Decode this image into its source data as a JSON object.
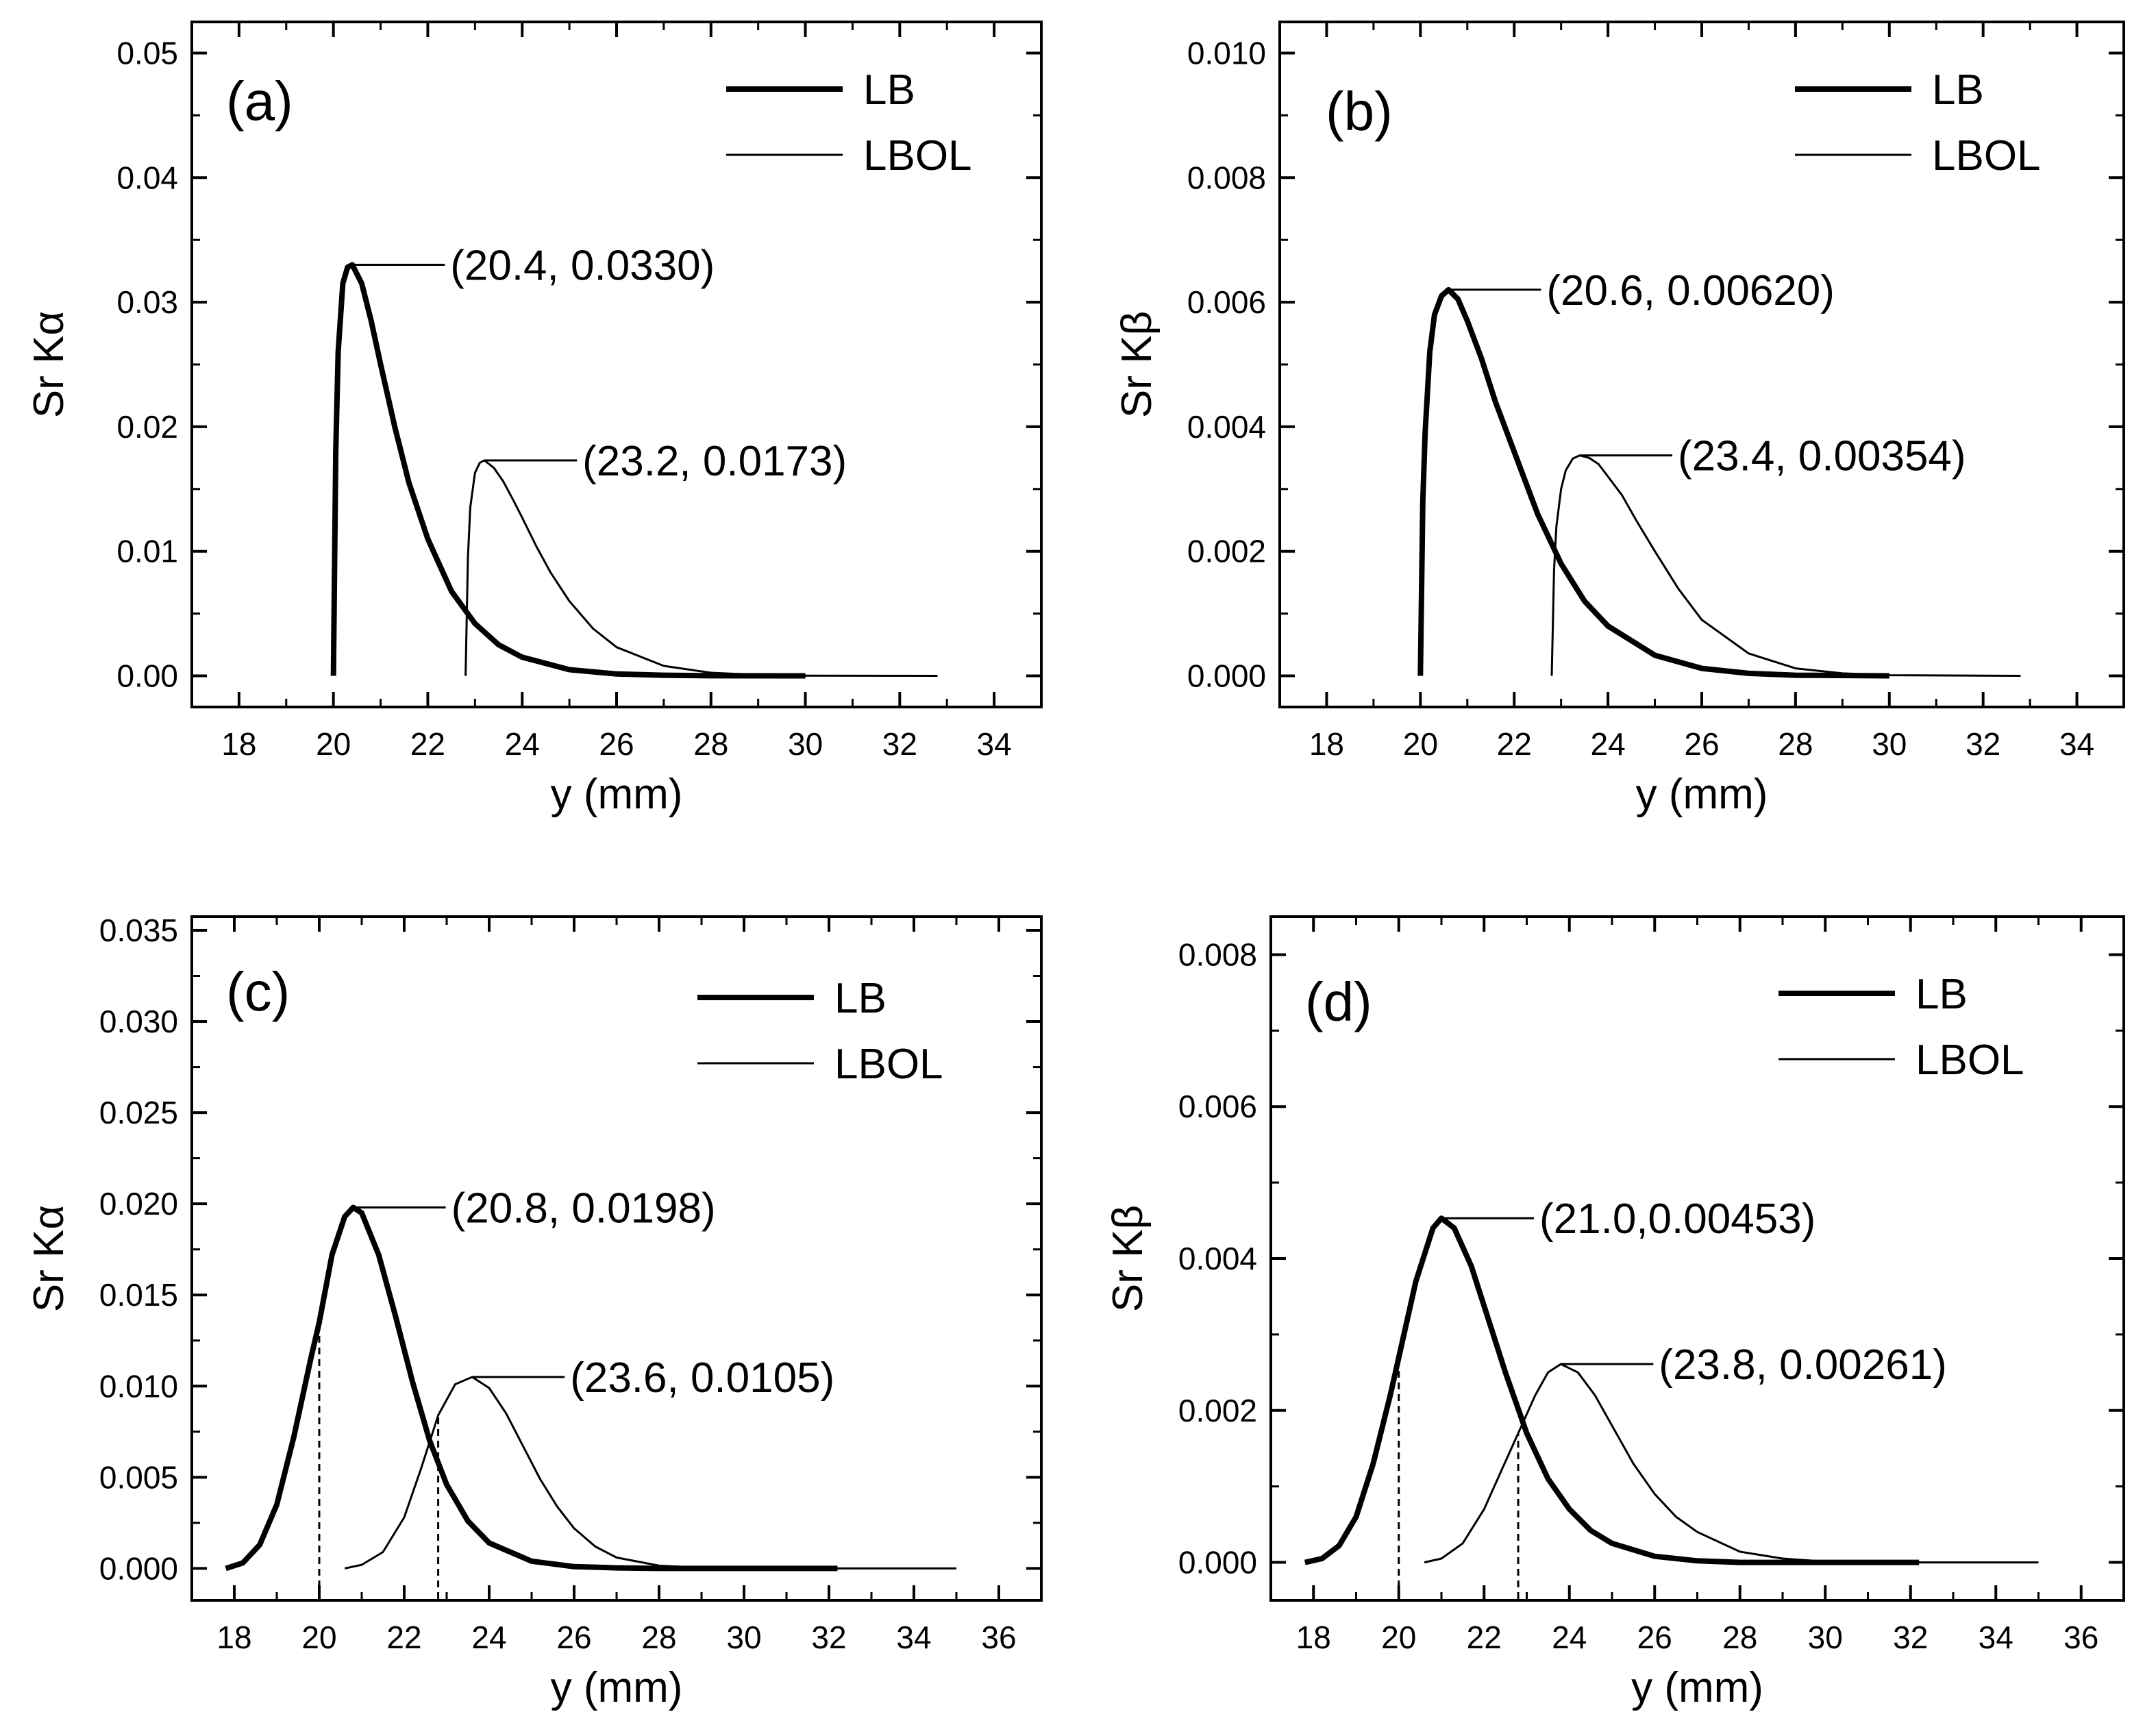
{
  "chart_data": [
    {
      "panel": "a",
      "type": "line",
      "tag": "(a)",
      "xlabel": "y (mm)",
      "ylabel": "Sr Kα",
      "xlim": [
        17,
        35
      ],
      "ylim": [
        -0.0025,
        0.0525
      ],
      "xticks": [
        18,
        20,
        22,
        24,
        26,
        28,
        30,
        32,
        34
      ],
      "xtick_labels": [
        "18",
        "20",
        "22",
        "24",
        "26",
        "28",
        "30",
        "32",
        "34"
      ],
      "yticks": [
        0,
        0.01,
        0.02,
        0.03,
        0.04,
        0.05
      ],
      "ytick_labels": [
        "0.00",
        "0.01",
        "0.02",
        "0.03",
        "0.04",
        "0.05"
      ],
      "legend": [
        "LB",
        "LBOL"
      ],
      "series": [
        {
          "name": "LB",
          "x": [
            20.0,
            20.05,
            20.1,
            20.2,
            20.3,
            20.4,
            20.6,
            20.8,
            21.0,
            21.3,
            21.6,
            22.0,
            22.5,
            23.0,
            23.5,
            24.0,
            25.0,
            26.0,
            27.0,
            28.0,
            30.0
          ],
          "y": [
            0.0,
            0.018,
            0.026,
            0.0315,
            0.0328,
            0.033,
            0.0315,
            0.0285,
            0.025,
            0.02,
            0.0155,
            0.011,
            0.0068,
            0.0042,
            0.0025,
            0.0015,
            0.0005,
            0.00015,
            5e-05,
            1e-05,
            0.0
          ]
        },
        {
          "name": "LBOL",
          "x": [
            22.8,
            22.85,
            22.9,
            23.0,
            23.1,
            23.2,
            23.4,
            23.6,
            23.8,
            24.0,
            24.3,
            24.6,
            25.0,
            25.5,
            26.0,
            27.0,
            28.0,
            29.0,
            30.0,
            32.8
          ],
          "y": [
            0.0,
            0.0095,
            0.0135,
            0.0163,
            0.0171,
            0.0173,
            0.0167,
            0.0156,
            0.0142,
            0.0127,
            0.0104,
            0.0083,
            0.006,
            0.0038,
            0.0023,
            0.0008,
            0.00025,
            8e-05,
            2e-05,
            0.0
          ]
        }
      ],
      "annotations": [
        {
          "text": "(20.4, 0.0330)",
          "x": 20.4,
          "y": 0.033
        },
        {
          "text": "(23.2, 0.0173)",
          "x": 23.2,
          "y": 0.0173
        }
      ],
      "dashed_lines": []
    },
    {
      "panel": "b",
      "type": "line",
      "tag": "(b)",
      "xlabel": "y (mm)",
      "ylabel": "Sr Kβ",
      "xlim": [
        17,
        35
      ],
      "ylim": [
        -0.0005,
        0.0105
      ],
      "xticks": [
        18,
        20,
        22,
        24,
        26,
        28,
        30,
        32,
        34
      ],
      "xtick_labels": [
        "18",
        "20",
        "22",
        "24",
        "26",
        "28",
        "30",
        "32",
        "34"
      ],
      "yticks": [
        0,
        0.002,
        0.004,
        0.006,
        0.008,
        0.01
      ],
      "ytick_labels": [
        "0.000",
        "0.002",
        "0.004",
        "0.006",
        "0.008",
        "0.010"
      ],
      "legend": [
        "LB",
        "LBOL"
      ],
      "series": [
        {
          "name": "LB",
          "x": [
            20.0,
            20.05,
            20.1,
            20.2,
            20.3,
            20.45,
            20.6,
            20.8,
            21.0,
            21.3,
            21.6,
            22.0,
            22.5,
            23.0,
            23.5,
            24.0,
            25.0,
            26.0,
            27.0,
            28.0,
            30.0
          ],
          "y": [
            0.0,
            0.0028,
            0.0039,
            0.0052,
            0.0058,
            0.0061,
            0.0062,
            0.00605,
            0.0057,
            0.0051,
            0.0044,
            0.0036,
            0.0026,
            0.0018,
            0.0012,
            0.0008,
            0.00033,
            0.00012,
            4e-05,
            1e-05,
            0.0
          ]
        },
        {
          "name": "LBOL",
          "x": [
            22.8,
            22.85,
            22.9,
            23.0,
            23.1,
            23.25,
            23.4,
            23.6,
            23.8,
            24.0,
            24.3,
            24.6,
            25.0,
            25.5,
            26.0,
            27.0,
            28.0,
            29.0,
            30.0,
            32.8
          ],
          "y": [
            0.0,
            0.0017,
            0.0024,
            0.003,
            0.0033,
            0.00349,
            0.00354,
            0.0035,
            0.0034,
            0.0032,
            0.0029,
            0.0025,
            0.002,
            0.0014,
            0.0009,
            0.00036,
            0.00012,
            4e-05,
            1e-05,
            0.0
          ]
        }
      ],
      "annotations": [
        {
          "text": "(20.6, 0.00620)",
          "x": 20.6,
          "y": 0.0062
        },
        {
          "text": "(23.4, 0.00354)",
          "x": 23.4,
          "y": 0.00354
        }
      ],
      "dashed_lines": []
    },
    {
      "panel": "c",
      "type": "line",
      "tag": "(c)",
      "xlabel": "y (mm)",
      "ylabel": "Sr Kα",
      "xlim": [
        17,
        37
      ],
      "ylim": [
        -0.00175,
        0.03575
      ],
      "xticks": [
        18,
        20,
        22,
        24,
        26,
        28,
        30,
        32,
        34,
        36
      ],
      "xtick_labels": [
        "18",
        "20",
        "22",
        "24",
        "26",
        "28",
        "30",
        "32",
        "34",
        "36"
      ],
      "yticks": [
        0,
        0.005,
        0.01,
        0.015,
        0.02,
        0.025,
        0.03,
        0.035
      ],
      "ytick_labels": [
        "0.000",
        "0.005",
        "0.010",
        "0.015",
        "0.020",
        "0.025",
        "0.030",
        "0.035"
      ],
      "legend": [
        "LB",
        "LBOL"
      ],
      "series": [
        {
          "name": "LB",
          "x": [
            17.8,
            18.2,
            18.6,
            19.0,
            19.4,
            19.8,
            20.0,
            20.3,
            20.6,
            20.8,
            21.0,
            21.4,
            21.8,
            22.2,
            22.6,
            23.0,
            23.5,
            24.0,
            25.0,
            26.0,
            27.0,
            28.0,
            30.0,
            32.2
          ],
          "y": [
            0.0,
            0.0003,
            0.0013,
            0.0035,
            0.0072,
            0.0115,
            0.0135,
            0.0172,
            0.0193,
            0.0198,
            0.0195,
            0.0172,
            0.0138,
            0.0102,
            0.007,
            0.0046,
            0.0026,
            0.0014,
            0.0004,
            0.0001,
            3e-05,
            0.0,
            0.0,
            0.0
          ]
        },
        {
          "name": "LBOL",
          "x": [
            20.6,
            21.0,
            21.5,
            22.0,
            22.4,
            22.8,
            23.2,
            23.6,
            24.0,
            24.4,
            24.8,
            25.2,
            25.6,
            26.0,
            26.5,
            27.0,
            28.0,
            29.0,
            30.0,
            32.0,
            35.0
          ],
          "y": [
            0.0,
            0.0002,
            0.0009,
            0.0028,
            0.0055,
            0.0084,
            0.0101,
            0.0105,
            0.0099,
            0.0085,
            0.0067,
            0.0049,
            0.0034,
            0.0022,
            0.0012,
            0.0006,
            0.00015,
            4e-05,
            1e-05,
            0.0,
            0.0
          ]
        }
      ],
      "annotations": [
        {
          "text": "(20.8, 0.0198)",
          "x": 20.8,
          "y": 0.0198
        },
        {
          "text": "(23.6, 0.0105)",
          "x": 23.6,
          "y": 0.0105
        }
      ],
      "dashed_lines": [
        {
          "x": 20.0,
          "y": 0.0135
        },
        {
          "x": 22.8,
          "y": 0.0084
        }
      ]
    },
    {
      "panel": "d",
      "type": "line",
      "tag": "(d)",
      "xlabel": "y (mm)",
      "ylabel": "Sr Kβ",
      "xlim": [
        17,
        37
      ],
      "ylim": [
        -0.0005,
        0.0085
      ],
      "xticks": [
        18,
        20,
        22,
        24,
        26,
        28,
        30,
        32,
        34,
        36
      ],
      "xtick_labels": [
        "18",
        "20",
        "22",
        "24",
        "26",
        "28",
        "30",
        "32",
        "34",
        "36"
      ],
      "yticks": [
        0,
        0.002,
        0.004,
        0.006,
        0.008
      ],
      "ytick_labels": [
        "0.000",
        "0.002",
        "0.004",
        "0.006",
        "0.008"
      ],
      "legend": [
        "LB",
        "LBOL"
      ],
      "series": [
        {
          "name": "LB",
          "x": [
            17.8,
            18.2,
            18.6,
            19.0,
            19.4,
            19.8,
            20.0,
            20.4,
            20.8,
            21.0,
            21.3,
            21.7,
            22.1,
            22.5,
            23.0,
            23.5,
            24.0,
            24.5,
            25.0,
            26.0,
            27.0,
            28.0,
            30.0,
            32.2
          ],
          "y": [
            0.0,
            5e-05,
            0.00022,
            0.0006,
            0.0013,
            0.0022,
            0.0027,
            0.0037,
            0.0044,
            0.00453,
            0.0044,
            0.0039,
            0.0032,
            0.0025,
            0.0017,
            0.0011,
            0.0007,
            0.00042,
            0.00025,
            8e-05,
            2e-05,
            0.0,
            0.0,
            0.0
          ]
        },
        {
          "name": "LBOL",
          "x": [
            20.6,
            21.0,
            21.5,
            22.0,
            22.4,
            22.8,
            23.2,
            23.5,
            23.8,
            24.2,
            24.6,
            25.0,
            25.5,
            26.0,
            26.5,
            27.0,
            28.0,
            29.0,
            30.0,
            32.0,
            35.0
          ],
          "y": [
            0.0,
            5e-05,
            0.00025,
            0.0007,
            0.0012,
            0.0017,
            0.0022,
            0.0025,
            0.00261,
            0.0025,
            0.0022,
            0.0018,
            0.0013,
            0.0009,
            0.0006,
            0.0004,
            0.00014,
            5e-05,
            1e-05,
            0.0,
            0.0
          ]
        }
      ],
      "annotations": [
        {
          "text": "(21.0,0.00453)",
          "x": 21.0,
          "y": 0.00453
        },
        {
          "text": "(23.8, 0.00261)",
          "x": 23.8,
          "y": 0.00261
        }
      ],
      "dashed_lines": [
        {
          "x": 20.0,
          "y": 0.0027
        },
        {
          "x": 22.8,
          "y": 0.0017
        }
      ]
    }
  ]
}
